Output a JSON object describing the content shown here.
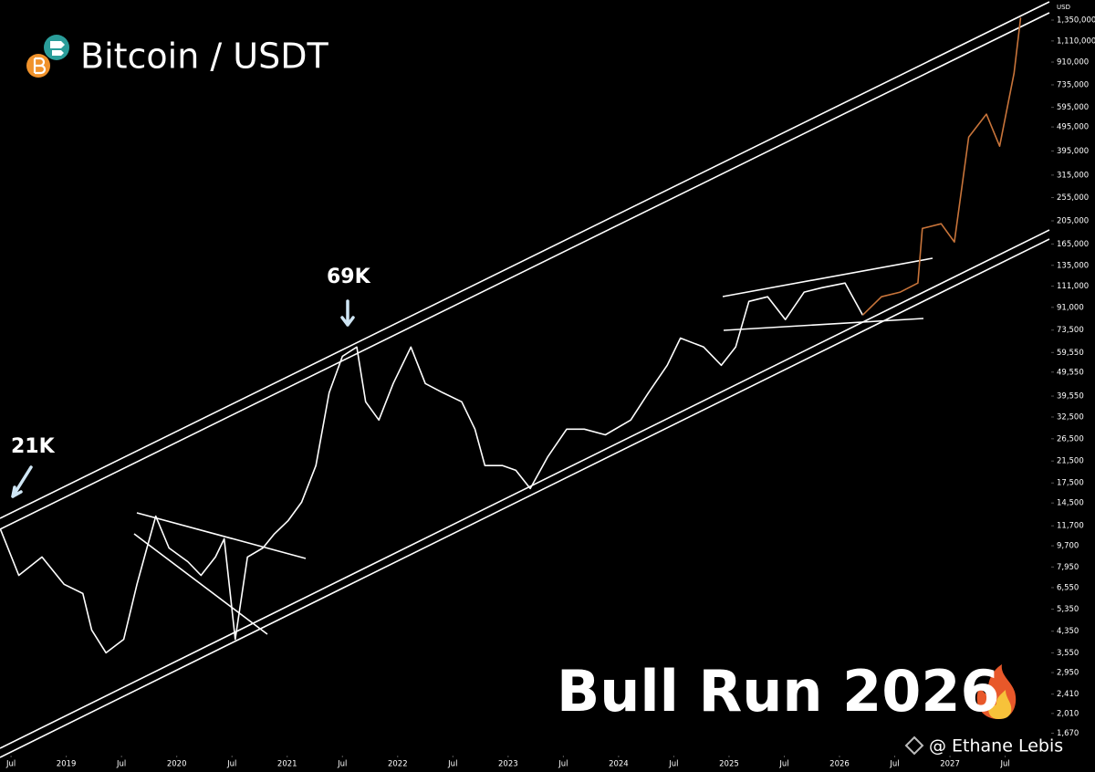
{
  "chart_data": {
    "type": "line",
    "title": "Bitcoin / USDT",
    "y_label": "USD",
    "log_scale": true,
    "grid": false,
    "annotations": [
      "21K",
      "69K",
      "Bull Run 2026",
      "@ Ethane Lebis"
    ],
    "x": [
      2018.405,
      2018.57,
      2018.78,
      2018.98,
      2019.15,
      2019.23,
      2019.36,
      2019.52,
      2019.64,
      2019.73,
      2019.81,
      2019.93,
      2020.1,
      2020.22,
      2020.35,
      2020.43,
      2020.53,
      2020.64,
      2020.78,
      2020.88,
      2021.01,
      2021.13,
      2021.26,
      2021.38,
      2021.5,
      2021.63,
      2021.71,
      2021.83,
      2021.96,
      2022.12,
      2022.25,
      2022.41,
      2022.58,
      2022.7,
      2022.79,
      2022.95,
      2023.07,
      2023.2,
      2023.36,
      2023.53,
      2023.69,
      2023.88,
      2024.11,
      2024.27,
      2024.44,
      2024.56,
      2024.77,
      2024.93,
      2025.06,
      2025.18,
      2025.35,
      2025.51,
      2025.68,
      2025.84,
      2026.05,
      2026.21,
      2026.38,
      2026.55,
      2026.71,
      2026.75,
      2026.92,
      2027.04,
      2027.17,
      2027.33,
      2027.45,
      2027.58,
      2027.64
    ],
    "series": [
      {
        "color": "#ffffff",
        "values": [
          11300,
          7350,
          8730,
          6760,
          6200,
          4400,
          3550,
          4030,
          6760,
          9500,
          12800,
          9500,
          8360,
          7350,
          8730,
          10350,
          4030,
          8730,
          9500,
          10800,
          12300,
          14600,
          20600,
          40800,
          57500,
          62700,
          37500,
          31600,
          44500,
          62700,
          44500,
          40800,
          37500,
          29000,
          20600,
          20600,
          19700,
          16600,
          22400,
          29000,
          29000,
          27500,
          31600,
          40800,
          52800,
          68200,
          62700,
          52800,
          62700,
          96200,
          100500,
          81100,
          105000,
          109400,
          114300,
          84600,
          null,
          null,
          null,
          null,
          null,
          null,
          null,
          null,
          null,
          null,
          null
        ]
      },
      {
        "color": "#c8743a",
        "values": [
          null,
          null,
          null,
          null,
          null,
          null,
          null,
          null,
          null,
          null,
          null,
          null,
          null,
          null,
          null,
          null,
          null,
          null,
          null,
          null,
          null,
          null,
          null,
          null,
          null,
          null,
          null,
          null,
          null,
          null,
          null,
          null,
          null,
          null,
          null,
          null,
          null,
          null,
          null,
          null,
          null,
          null,
          null,
          null,
          null,
          null,
          null,
          null,
          null,
          null,
          null,
          null,
          null,
          null,
          null,
          84600,
          100500,
          105000,
          114300,
          191000,
          199500,
          168000,
          450000,
          558000,
          413000,
          820000,
          1380000
        ]
      }
    ],
    "xlim": [
      2018.4,
      2027.9
    ],
    "xticks": [
      {
        "value": 2018.5,
        "label": "Jul"
      },
      2019,
      {
        "value": 2019.5,
        "label": "Jul"
      },
      2020,
      {
        "value": 2020.5,
        "label": "Jul"
      },
      2021,
      {
        "value": 2021.5,
        "label": "Jul"
      },
      2022,
      {
        "value": 2022.5,
        "label": "Jul"
      },
      2023,
      {
        "value": 2023.5,
        "label": "Jul"
      },
      2024,
      {
        "value": 2024.5,
        "label": "Jul"
      },
      2025,
      {
        "value": 2025.5,
        "label": "Jul"
      },
      2026,
      {
        "value": 2026.5,
        "label": "Jul"
      },
      2027,
      {
        "value": 2027.5,
        "label": "Jul"
      }
    ],
    "ylim": [
      1160,
      1630000
    ],
    "yticks": [
      {
        "value": 1350000,
        "label": "1,350,000"
      },
      {
        "value": 1110000,
        "label": "1,110,000"
      },
      {
        "value": 910000,
        "label": "910,000"
      },
      {
        "value": 735000,
        "label": "735,000"
      },
      {
        "value": 595000,
        "label": "595,000"
      },
      {
        "value": 495000,
        "label": "495,000"
      },
      {
        "value": 395000,
        "label": "395,000"
      },
      {
        "value": 315000,
        "label": "315,000"
      },
      {
        "value": 255000,
        "label": "255,000"
      },
      {
        "value": 205000,
        "label": "205,000"
      },
      {
        "value": 165000,
        "label": "165,000"
      },
      {
        "value": 135000,
        "label": "135,000"
      },
      {
        "value": 111000,
        "label": "111,000"
      },
      {
        "value": 91000,
        "label": "91,000"
      },
      {
        "value": 73500,
        "label": "73,500"
      },
      {
        "value": 59550,
        "label": "59,550"
      },
      {
        "value": 49550,
        "label": "49,550"
      },
      {
        "value": 39550,
        "label": "39,550"
      },
      {
        "value": 32500,
        "label": "32,500"
      },
      {
        "value": 26500,
        "label": "26,500"
      },
      {
        "value": 21500,
        "label": "21,500"
      },
      {
        "value": 17500,
        "label": "17,500"
      },
      {
        "value": 14500,
        "label": "14,500"
      },
      {
        "value": 11700,
        "label": "11,700"
      },
      {
        "value": 9700,
        "label": "9,700"
      },
      {
        "value": 7950,
        "label": "7,950"
      },
      {
        "value": 6550,
        "label": "6,550"
      },
      {
        "value": 5350,
        "label": "5,350"
      },
      {
        "value": 4350,
        "label": "4,350"
      },
      {
        "value": 3550,
        "label": "3,550"
      },
      {
        "value": 2950,
        "label": "2,950"
      },
      {
        "value": 2410,
        "label": "2,410"
      },
      {
        "value": 2010,
        "label": "2,010"
      },
      {
        "value": 1670,
        "label": "1,670"
      }
    ]
  }
}
